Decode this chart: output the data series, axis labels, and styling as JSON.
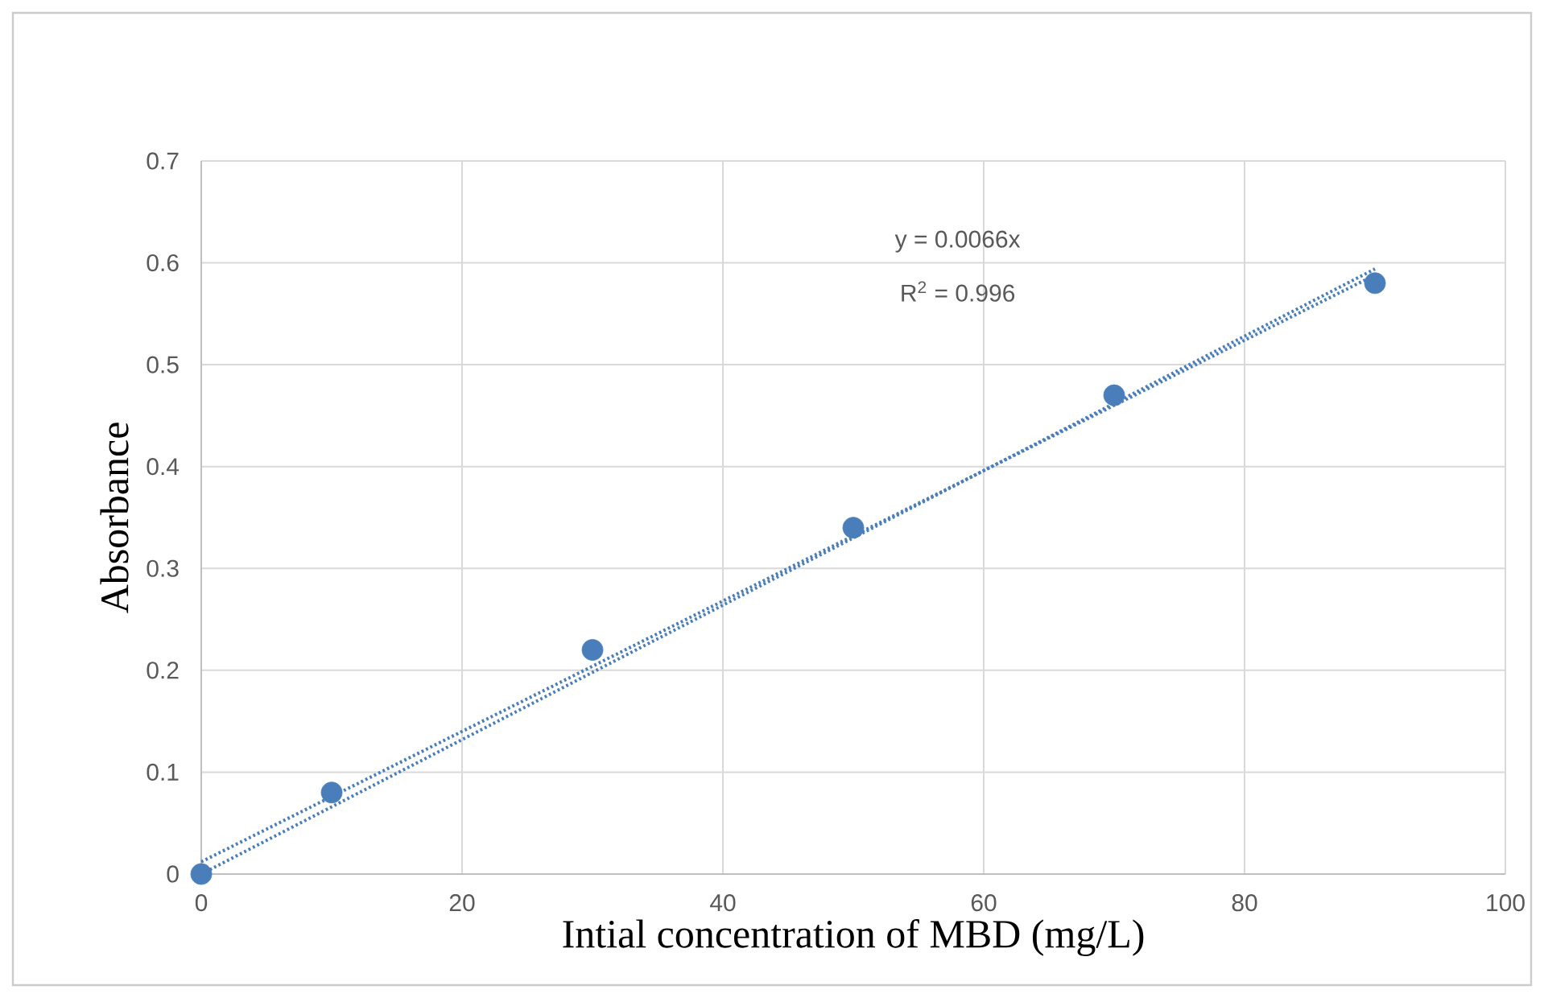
{
  "chart_data": {
    "type": "scatter",
    "xlabel": "Intial concentration of MBD (mg/L)",
    "ylabel": "Absorbance",
    "annotations": [
      "y = 0.0066x",
      "R$^{2}$ = 0.996"
    ],
    "series": [
      {
        "color": "#4a7ebb",
        "marker": "circle",
        "x": [
          0,
          10,
          30,
          50,
          70,
          90
        ],
        "values": [
          0,
          0.08,
          0.22,
          0.34,
          0.47,
          0.58
        ]
      },
      {
        "type": "line",
        "color": "#4a7ebb",
        "line_style": "dotted",
        "marker": "none",
        "x": [
          0,
          90
        ],
        "values": [
          0,
          0.594
        ]
      },
      {
        "type": "line",
        "color": "#4a7ebb",
        "line_style": "dotted",
        "marker": "none",
        "x": [
          0,
          90
        ],
        "values": [
          0.012,
          0.588
        ]
      }
    ],
    "xlim": [
      0,
      100
    ],
    "ylim": [
      0,
      0.7
    ],
    "xticks": [
      0,
      20,
      40,
      60,
      80,
      100
    ],
    "yticks": [
      0,
      0.1,
      0.2,
      0.3,
      0.4,
      0.5,
      0.6,
      0.7
    ],
    "grid": true
  }
}
